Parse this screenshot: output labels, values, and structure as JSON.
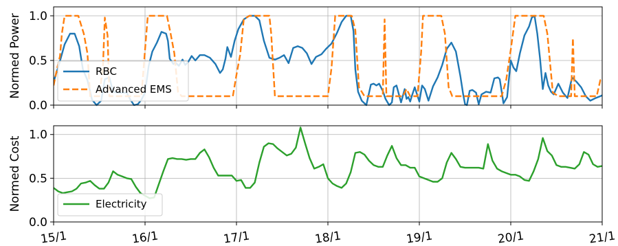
{
  "chart_data": [
    {
      "type": "line",
      "ylabel": "Normed Power",
      "ylim": [
        0,
        1.1
      ],
      "yticks": [
        "0.0",
        "0.5",
        "1.0"
      ],
      "xlim": [
        15,
        21
      ],
      "grid": true,
      "legend_position": "lower-left",
      "series": [
        {
          "name": "RBC",
          "color": "#1f77b4",
          "style": "solid",
          "x": [
            15.0,
            15.06,
            15.12,
            15.18,
            15.23,
            15.28,
            15.32,
            15.37,
            15.42,
            15.47,
            15.52,
            15.56,
            15.61,
            15.65,
            15.7,
            15.75,
            15.8,
            15.84,
            15.88,
            15.92,
            15.96,
            16.0,
            16.04,
            16.08,
            16.13,
            16.18,
            16.23,
            16.25,
            16.27,
            16.29,
            16.31,
            16.33,
            16.37,
            16.41,
            16.44,
            16.47,
            16.51,
            16.55,
            16.6,
            16.65,
            16.71,
            16.77,
            16.82,
            16.85,
            16.88,
            16.9,
            16.94,
            16.98,
            17.02,
            17.08,
            17.14,
            17.2,
            17.25,
            17.3,
            17.36,
            17.42,
            17.47,
            17.52,
            17.57,
            17.62,
            17.67,
            17.72,
            17.77,
            17.82,
            17.87,
            17.93,
            17.98,
            18.04,
            18.1,
            18.15,
            18.2,
            18.25,
            18.28,
            18.3,
            18.33,
            18.37,
            18.42,
            18.47,
            18.5,
            18.53,
            18.56,
            18.6,
            18.63,
            18.67,
            18.7,
            18.72,
            18.75,
            18.8,
            18.84,
            18.86,
            18.88,
            18.9,
            18.92,
            18.95,
            19.0,
            19.03,
            19.06,
            19.1,
            19.15,
            19.2,
            19.25,
            19.3,
            19.35,
            19.4,
            19.45,
            19.48,
            19.5,
            19.52,
            19.55,
            19.58,
            19.62,
            19.65,
            19.68,
            19.73,
            19.78,
            19.82,
            19.86,
            19.88,
            19.92,
            19.96,
            20.0,
            20.03,
            20.06,
            20.1,
            20.15,
            20.2,
            20.23,
            20.26,
            20.29,
            20.32,
            20.35,
            20.38,
            20.41,
            20.44,
            20.47,
            20.52,
            20.57,
            20.62,
            20.67,
            20.72,
            20.77,
            20.82,
            20.87,
            20.93,
            20.98,
            21.0
          ],
          "y": [
            0.26,
            0.46,
            0.68,
            0.8,
            0.8,
            0.66,
            0.4,
            0.28,
            0.06,
            0.0,
            0.05,
            0.29,
            0.31,
            0.15,
            0.14,
            0.14,
            0.14,
            0.06,
            0.0,
            0.01,
            0.06,
            0.14,
            0.44,
            0.6,
            0.7,
            0.82,
            0.8,
            0.72,
            0.52,
            0.49,
            0.46,
            0.48,
            0.44,
            0.51,
            0.45,
            0.48,
            0.55,
            0.5,
            0.56,
            0.56,
            0.53,
            0.46,
            0.36,
            0.4,
            0.52,
            0.65,
            0.54,
            0.72,
            0.85,
            0.96,
            1.0,
            1.0,
            0.95,
            0.72,
            0.53,
            0.51,
            0.53,
            0.56,
            0.47,
            0.64,
            0.66,
            0.64,
            0.58,
            0.46,
            0.54,
            0.57,
            0.63,
            0.69,
            0.81,
            0.93,
            1.0,
            1.0,
            0.83,
            0.4,
            0.15,
            0.05,
            0.0,
            0.23,
            0.24,
            0.22,
            0.24,
            0.16,
            0.07,
            0.0,
            0.03,
            0.2,
            0.22,
            0.03,
            0.18,
            0.07,
            0.09,
            0.04,
            0.11,
            0.2,
            0.04,
            0.22,
            0.18,
            0.05,
            0.21,
            0.31,
            0.45,
            0.63,
            0.7,
            0.6,
            0.32,
            0.12,
            0.01,
            0.0,
            0.16,
            0.17,
            0.14,
            0.01,
            0.12,
            0.15,
            0.14,
            0.3,
            0.31,
            0.29,
            0.02,
            0.09,
            0.5,
            0.42,
            0.38,
            0.58,
            0.78,
            0.88,
            0.98,
            1.0,
            0.8,
            0.52,
            0.18,
            0.36,
            0.22,
            0.15,
            0.12,
            0.24,
            0.14,
            0.08,
            0.31,
            0.26,
            0.2,
            0.1,
            0.05,
            0.08,
            0.1,
            0.11
          ]
        },
        {
          "name": "Advanced EMS",
          "color": "#ff7f0e",
          "style": "dashed",
          "x": [
            15.0,
            15.04,
            15.07,
            15.09,
            15.12,
            15.14,
            15.16,
            15.2,
            15.27,
            15.33,
            15.37,
            15.4,
            15.42,
            15.44,
            15.46,
            15.5,
            15.54,
            15.56,
            15.59,
            15.61,
            15.64,
            15.68,
            15.72,
            15.76,
            15.8,
            15.84,
            15.87,
            15.93,
            15.96,
            16.0,
            16.03,
            16.06,
            16.08,
            16.13,
            16.17,
            16.21,
            16.24,
            16.28,
            16.32,
            16.36,
            16.4,
            16.46,
            16.52,
            16.6,
            16.72,
            16.84,
            16.92,
            16.96,
            17.0,
            17.04,
            17.08,
            17.14,
            17.2,
            17.25,
            17.3,
            17.34,
            17.36,
            17.38,
            17.42,
            17.5,
            17.6,
            17.7,
            17.8,
            17.9,
            17.94,
            17.97,
            18.0,
            18.04,
            18.08,
            18.14,
            18.2,
            18.26,
            18.3,
            18.34,
            18.4,
            18.46,
            18.52,
            18.57,
            18.6,
            18.62,
            18.64,
            18.67,
            18.7,
            18.74,
            18.78,
            18.8,
            18.82,
            18.86,
            18.9,
            18.94,
            18.98,
            19.02,
            19.04,
            19.08,
            19.14,
            19.2,
            19.24,
            19.28,
            19.32,
            19.36,
            19.4,
            19.46,
            19.52,
            19.58,
            19.64,
            19.7,
            19.74,
            19.78,
            19.83,
            19.86,
            19.9,
            19.95,
            20.0,
            20.05,
            20.1,
            20.14,
            20.18,
            20.25,
            20.3,
            20.36,
            20.4,
            20.46,
            20.52,
            20.58,
            20.62,
            20.64,
            20.66,
            20.68,
            20.7,
            20.74,
            20.78,
            20.82,
            20.86,
            20.9,
            20.94,
            20.98,
            21.0
          ],
          "y": [
            0.22,
            0.42,
            0.55,
            0.8,
            1.0,
            1.0,
            1.0,
            1.0,
            1.0,
            0.8,
            0.58,
            0.1,
            0.1,
            0.1,
            0.1,
            0.1,
            0.44,
            0.98,
            0.78,
            0.1,
            0.1,
            0.1,
            0.1,
            0.1,
            0.1,
            0.1,
            0.1,
            0.1,
            0.1,
            0.62,
            1.0,
            1.0,
            1.0,
            1.0,
            1.0,
            1.0,
            1.0,
            0.8,
            0.58,
            0.15,
            0.1,
            0.1,
            0.1,
            0.1,
            0.1,
            0.1,
            0.1,
            0.1,
            0.34,
            0.56,
            0.96,
            1.0,
            1.0,
            1.0,
            1.0,
            1.0,
            1.0,
            0.8,
            0.1,
            0.1,
            0.1,
            0.1,
            0.1,
            0.1,
            0.1,
            0.1,
            0.1,
            0.42,
            1.0,
            1.0,
            1.0,
            1.0,
            0.84,
            0.2,
            0.1,
            0.1,
            0.1,
            0.1,
            0.1,
            0.96,
            0.1,
            0.1,
            0.1,
            0.1,
            0.1,
            0.1,
            0.1,
            0.18,
            0.1,
            0.1,
            0.1,
            0.6,
            1.0,
            1.0,
            1.0,
            1.0,
            1.0,
            0.8,
            0.2,
            0.1,
            0.1,
            0.1,
            0.1,
            0.1,
            0.1,
            0.1,
            0.1,
            0.1,
            0.1,
            0.1,
            0.1,
            0.28,
            0.62,
            1.0,
            1.0,
            1.0,
            1.0,
            1.0,
            1.0,
            1.0,
            0.8,
            0.14,
            0.1,
            0.1,
            0.1,
            0.1,
            0.1,
            0.75,
            0.1,
            0.1,
            0.1,
            0.1,
            0.1,
            0.1,
            0.1,
            0.28,
            0.28
          ]
        }
      ]
    },
    {
      "type": "line",
      "ylabel": "Normed Cost",
      "ylim": [
        0,
        1.1
      ],
      "yticks": [
        "0.0",
        "0.5",
        "1.0"
      ],
      "xlim": [
        15,
        21
      ],
      "xticks": [
        "15/1",
        "16/1",
        "17/1",
        "18/1",
        "19/1",
        "20/1",
        "21/1"
      ],
      "grid": true,
      "legend_position": "lower-left",
      "series": [
        {
          "name": "Electricity",
          "color": "#2ca02c",
          "style": "solid",
          "x": [
            15.0,
            15.05,
            15.1,
            15.15,
            15.2,
            15.25,
            15.3,
            15.35,
            15.4,
            15.45,
            15.5,
            15.55,
            15.6,
            15.65,
            15.7,
            15.75,
            15.8,
            15.85,
            15.9,
            15.95,
            16.0,
            16.05,
            16.1,
            16.15,
            16.2,
            16.25,
            16.3,
            16.35,
            16.4,
            16.45,
            16.5,
            16.55,
            16.6,
            16.65,
            16.7,
            16.75,
            16.8,
            16.85,
            16.9,
            16.95,
            17.0,
            17.05,
            17.1,
            17.15,
            17.2,
            17.25,
            17.3,
            17.35,
            17.4,
            17.45,
            17.5,
            17.55,
            17.6,
            17.65,
            17.7,
            17.75,
            17.8,
            17.85,
            17.9,
            17.95,
            18.0,
            18.05,
            18.1,
            18.15,
            18.2,
            18.25,
            18.3,
            18.35,
            18.4,
            18.45,
            18.5,
            18.55,
            18.6,
            18.65,
            18.7,
            18.75,
            18.8,
            18.85,
            18.9,
            18.95,
            19.0,
            19.05,
            19.1,
            19.15,
            19.2,
            19.25,
            19.3,
            19.35,
            19.4,
            19.45,
            19.5,
            19.55,
            19.6,
            19.65,
            19.7,
            19.75,
            19.8,
            19.85,
            19.9,
            19.95,
            20.0,
            20.05,
            20.1,
            20.15,
            20.2,
            20.25,
            20.3,
            20.35,
            20.4,
            20.45,
            20.5,
            20.55,
            20.6,
            20.65,
            20.7,
            20.75,
            20.8,
            20.85,
            20.9,
            20.95,
            21.0
          ],
          "y": [
            0.39,
            0.35,
            0.33,
            0.34,
            0.35,
            0.38,
            0.44,
            0.45,
            0.47,
            0.42,
            0.38,
            0.38,
            0.45,
            0.58,
            0.54,
            0.52,
            0.5,
            0.49,
            0.4,
            0.33,
            0.3,
            0.27,
            0.28,
            0.43,
            0.58,
            0.72,
            0.73,
            0.72,
            0.72,
            0.71,
            0.72,
            0.72,
            0.79,
            0.83,
            0.74,
            0.62,
            0.53,
            0.53,
            0.53,
            0.53,
            0.47,
            0.48,
            0.39,
            0.39,
            0.45,
            0.68,
            0.86,
            0.9,
            0.89,
            0.84,
            0.8,
            0.76,
            0.78,
            0.85,
            1.08,
            0.9,
            0.73,
            0.61,
            0.63,
            0.66,
            0.5,
            0.44,
            0.41,
            0.39,
            0.44,
            0.57,
            0.79,
            0.8,
            0.77,
            0.7,
            0.65,
            0.63,
            0.63,
            0.76,
            0.87,
            0.73,
            0.65,
            0.65,
            0.62,
            0.62,
            0.52,
            0.5,
            0.48,
            0.46,
            0.46,
            0.5,
            0.68,
            0.79,
            0.72,
            0.63,
            0.62,
            0.62,
            0.62,
            0.62,
            0.61,
            0.89,
            0.7,
            0.61,
            0.58,
            0.56,
            0.54,
            0.54,
            0.52,
            0.48,
            0.47,
            0.58,
            0.72,
            0.96,
            0.81,
            0.76,
            0.65,
            0.63,
            0.63,
            0.62,
            0.61,
            0.66,
            0.8,
            0.77,
            0.66,
            0.63,
            0.64
          ]
        }
      ]
    }
  ]
}
